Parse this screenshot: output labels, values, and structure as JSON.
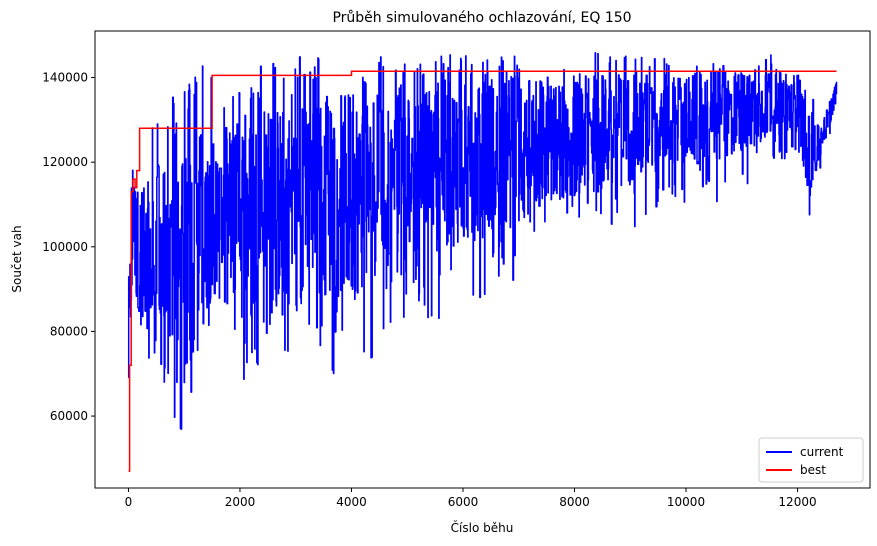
{
  "chart_data": {
    "type": "line",
    "title": "Průběh simulovaného ochlazování, EQ 150",
    "xlabel": "Číslo běhu",
    "ylabel": "Součet vah",
    "xlim": [
      -600,
      13300
    ],
    "ylim": [
      43000,
      151000
    ],
    "xticks": [
      0,
      2000,
      4000,
      6000,
      8000,
      10000,
      12000
    ],
    "yticks": [
      60000,
      80000,
      100000,
      120000,
      140000
    ],
    "legend_position": "lower-right",
    "grid": false,
    "series": [
      {
        "name": "current",
        "color": "#0000ff",
        "envelope": {
          "x": [
            0,
            60,
            150,
            300,
            500,
            700,
            900,
            1100,
            1300,
            1500,
            2000,
            2500,
            3000,
            3500,
            4000,
            4500,
            5000,
            5500,
            6000,
            6500,
            7000,
            7500,
            8000,
            8500,
            9000,
            9500,
            10000,
            10500,
            11000,
            11500,
            12000,
            12200,
            12400,
            12700
          ],
          "low": [
            47000,
            72000,
            80000,
            73000,
            67000,
            61000,
            53000,
            63000,
            70000,
            80000,
            68000,
            73000,
            72000,
            73000,
            63000,
            78000,
            82000,
            82000,
            88000,
            88000,
            88000,
            98000,
            103000,
            103000,
            104000,
            108000,
            110000,
            110000,
            113000,
            120000,
            120000,
            105000,
            118000,
            128000
          ],
          "high": [
            94000,
            124000,
            125000,
            122000,
            141000,
            141000,
            136000,
            141000,
            145000,
            141000,
            137000,
            145000,
            146000,
            145000,
            141000,
            145000,
            143000,
            146000,
            146000,
            146000,
            146000,
            142000,
            146000,
            146000,
            145000,
            146000,
            142000,
            145000,
            142000,
            146000,
            141000,
            140000,
            128000,
            139000
          ],
          "center": [
            75000,
            105000,
            100000,
            98000,
            96000,
            95000,
            92000,
            98000,
            104000,
            108000,
            107000,
            110000,
            110000,
            112000,
            112000,
            116000,
            117000,
            119000,
            120000,
            121000,
            122000,
            124000,
            126000,
            127000,
            128000,
            129000,
            130000,
            131000,
            132000,
            134000,
            134000,
            123000,
            124000,
            138000
          ]
        },
        "final_value": 139000,
        "points_count": 12700
      },
      {
        "name": "best",
        "color": "#ff0000",
        "x": [
          0,
          20,
          50,
          80,
          120,
          150,
          200,
          1480,
          1500,
          3950,
          4000,
          12700
        ],
        "y": [
          47000,
          72000,
          113000,
          116000,
          114000,
          118000,
          128000,
          128000,
          140500,
          140500,
          141500,
          141500
        ]
      }
    ]
  }
}
